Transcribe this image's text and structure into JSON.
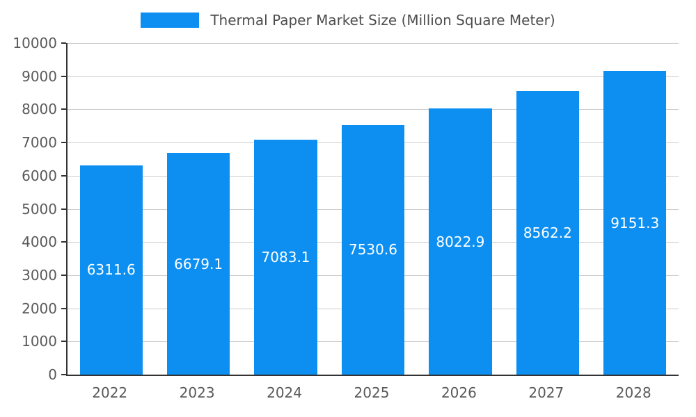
{
  "legend": {
    "title": "Thermal Paper Market Size (Million Square Meter)"
  },
  "chart_data": {
    "type": "bar",
    "title": "Thermal Paper Market Size (Million Square Meter)",
    "categories": [
      "2022",
      "2023",
      "2024",
      "2025",
      "2026",
      "2027",
      "2028"
    ],
    "values": [
      6311.6,
      6679.1,
      7083.1,
      7530.6,
      8022.9,
      8562.2,
      9151.3
    ],
    "value_labels": [
      "6311.6",
      "6679.1",
      "7083.1",
      "7530.6",
      "8022.9",
      "8562.2",
      "9151.3"
    ],
    "xlabel": "",
    "ylabel": "",
    "ylim": [
      0,
      10000
    ],
    "yticks": [
      0,
      1000,
      2000,
      3000,
      4000,
      5000,
      6000,
      7000,
      8000,
      9000,
      10000
    ],
    "grid": true,
    "legend_position": "top",
    "bar_color": "#0d8ff2",
    "value_label_color": "#ffffff",
    "axis_color": "#333333",
    "grid_color": "#cccccc",
    "tick_text_color": "#595959"
  }
}
